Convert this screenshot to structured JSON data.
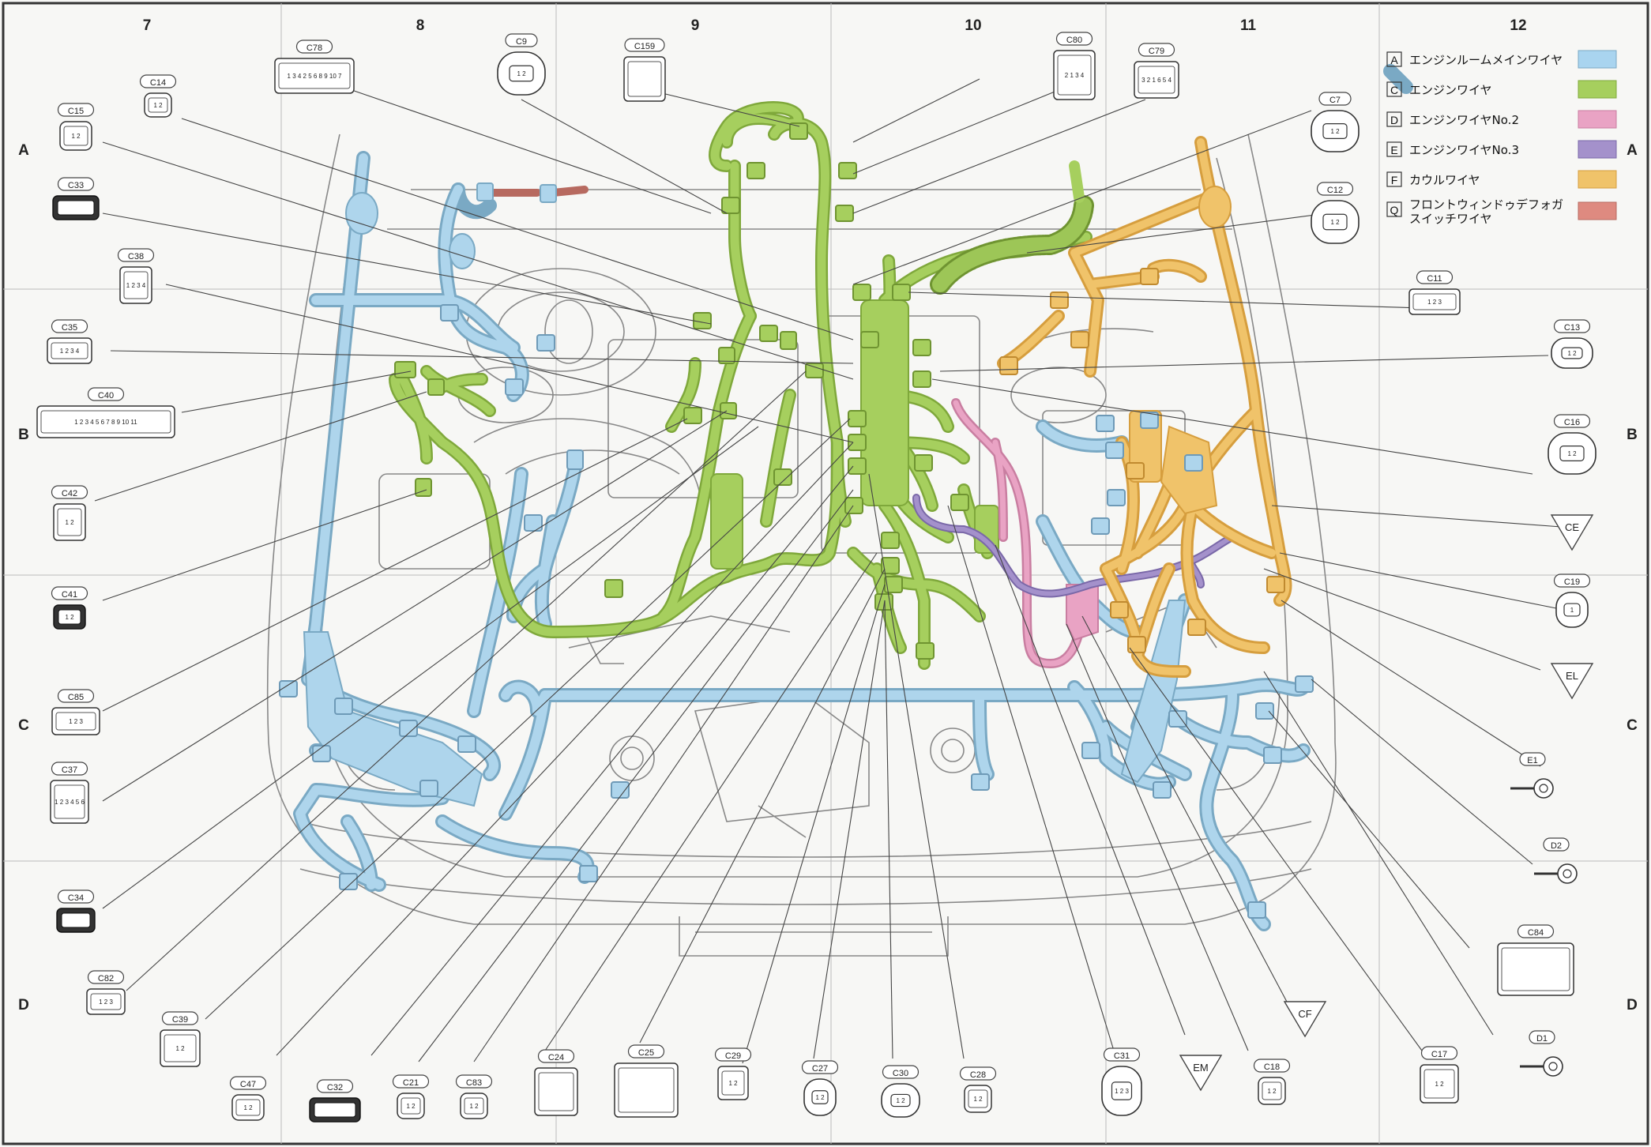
{
  "grid": {
    "columns": [
      "7",
      "8",
      "9",
      "10",
      "11",
      "12"
    ],
    "rows": [
      "A",
      "B",
      "C",
      "D"
    ]
  },
  "legend": [
    {
      "letter": "A",
      "label": "エンジンルームメインワイヤ",
      "color": "#a9d4ef"
    },
    {
      "letter": "C",
      "label": "エンジンワイヤ",
      "color": "#a6cf5e"
    },
    {
      "letter": "D",
      "label": "エンジンワイヤNo.2",
      "color": "#e9a3c4"
    },
    {
      "letter": "E",
      "label": "エンジンワイヤNo.3",
      "color": "#a491cb"
    },
    {
      "letter": "F",
      "label": "カウルワイヤ",
      "color": "#f0c36a"
    },
    {
      "letter": "Q",
      "label": "フロントウィンドゥデフォガ",
      "label2": "スイッチワイヤ",
      "color": "#de8a80"
    }
  ],
  "connectors": [
    {
      "id": "c78",
      "label": "C78",
      "pins": "1 3 4 2 5 6 8 9 10 7"
    },
    {
      "id": "c9",
      "label": "C9",
      "pins": "1 2"
    },
    {
      "id": "c159",
      "label": "C159",
      "pins": ""
    },
    {
      "id": "c80",
      "label": "C80",
      "pins": "2 1 3 4"
    },
    {
      "id": "c79",
      "label": "C79",
      "pins": "3 2 1 6 5 4"
    },
    {
      "id": "c7",
      "label": "C7",
      "pins": "1 2"
    },
    {
      "id": "c14",
      "label": "C14",
      "pins": "1 2"
    },
    {
      "id": "c15",
      "label": "C15",
      "pins": "1 2"
    },
    {
      "id": "c33",
      "label": "C33",
      "pins": ""
    },
    {
      "id": "c38",
      "label": "C38",
      "pins": "1 2 3 4"
    },
    {
      "id": "c35",
      "label": "C35",
      "pins": "1 2 3 4"
    },
    {
      "id": "c40",
      "label": "C40",
      "pins": "1 2 3 4 5 6 7 8 9 10 11"
    },
    {
      "id": "c42",
      "label": "C42",
      "pins": "1 2"
    },
    {
      "id": "c41",
      "label": "C41",
      "pins": "1 2"
    },
    {
      "id": "c85",
      "label": "C85",
      "pins": "1 2 3"
    },
    {
      "id": "c37",
      "label": "C37",
      "pins": "1 2 3 4 5 6"
    },
    {
      "id": "c34",
      "label": "C34",
      "pins": ""
    },
    {
      "id": "c82",
      "label": "C82",
      "pins": "1 2 3"
    },
    {
      "id": "c39",
      "label": "C39",
      "pins": "1 2"
    },
    {
      "id": "c47",
      "label": "C47",
      "pins": "1 2"
    },
    {
      "id": "c32",
      "label": "C32",
      "pins": ""
    },
    {
      "id": "c21",
      "label": "C21",
      "pins": "1 2"
    },
    {
      "id": "c83",
      "label": "C83",
      "pins": "1 2"
    },
    {
      "id": "c24",
      "label": "C24",
      "pins": ""
    },
    {
      "id": "c25",
      "label": "C25",
      "pins": ""
    },
    {
      "id": "c29",
      "label": "C29",
      "pins": "1 2"
    },
    {
      "id": "c27",
      "label": "C27",
      "pins": "1 2"
    },
    {
      "id": "c30",
      "label": "C30",
      "pins": "1 2"
    },
    {
      "id": "c28",
      "label": "C28",
      "pins": "1 2"
    },
    {
      "id": "c31",
      "label": "C31",
      "pins": "1 2 3"
    },
    {
      "id": "c18",
      "label": "C18",
      "pins": "1 2"
    },
    {
      "id": "c17",
      "label": "C17",
      "pins": "1 2"
    },
    {
      "id": "c12",
      "label": "C12",
      "pins": "1 2"
    },
    {
      "id": "c11",
      "label": "C11",
      "pins": "1 2 3"
    },
    {
      "id": "c13",
      "label": "C13",
      "pins": "1 2"
    },
    {
      "id": "c16",
      "label": "C16",
      "pins": "1 2"
    },
    {
      "id": "c19",
      "label": "C19",
      "pins": "1"
    },
    {
      "id": "c84",
      "label": "C84",
      "pins": ""
    },
    {
      "id": "e1",
      "label": "E1",
      "pins": ""
    },
    {
      "id": "d2",
      "label": "D2",
      "pins": ""
    },
    {
      "id": "d1",
      "label": "D1",
      "pins": ""
    }
  ],
  "grounds": [
    {
      "id": "ce",
      "label": "CE"
    },
    {
      "id": "el",
      "label": "EL"
    },
    {
      "id": "cf",
      "label": "CF"
    },
    {
      "id": "em",
      "label": "EM"
    }
  ]
}
